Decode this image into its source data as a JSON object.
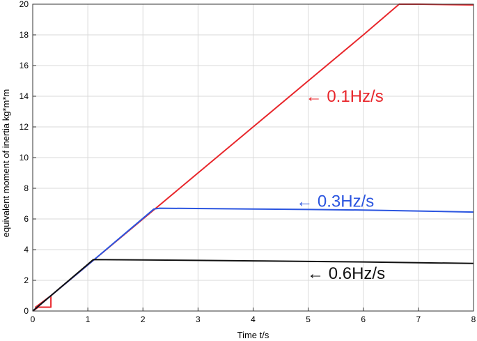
{
  "chart_data": {
    "type": "line",
    "title": "",
    "xlabel": "Time t/s",
    "ylabel": "equivalent moment of inertia  kg*m*m",
    "xlim": [
      0,
      8
    ],
    "ylim": [
      0,
      20
    ],
    "xticks": [
      0,
      1,
      2,
      3,
      4,
      5,
      6,
      7,
      8
    ],
    "yticks": [
      0,
      2,
      4,
      6,
      8,
      10,
      12,
      14,
      16,
      18,
      20
    ],
    "grid": true,
    "series": [
      {
        "color": "#e8262b",
        "x": [
          0,
          0.1,
          0.33,
          0.33,
          0.05,
          0.33,
          1.0,
          1.5,
          2.0,
          3.0,
          4.0,
          5.0,
          6.0,
          6.65,
          7.0,
          8.0
        ],
        "y": [
          0.0,
          0.25,
          0.25,
          1.0,
          0.25,
          1.0,
          3.0,
          4.5,
          6.0,
          9.0,
          12.0,
          15.0,
          18.0,
          20.0,
          20.0,
          19.95
        ]
      },
      {
        "color": "#2b55e0",
        "x": [
          0,
          0.33,
          1.1,
          2.2,
          2.3,
          4.0,
          5.0,
          6.0,
          7.0,
          8.0
        ],
        "y": [
          0.0,
          1.0,
          3.3,
          6.65,
          6.7,
          6.65,
          6.62,
          6.58,
          6.52,
          6.45
        ]
      },
      {
        "color": "#111111",
        "x": [
          0,
          0.33,
          1.1,
          2.0,
          3.0,
          4.0,
          5.0,
          6.0,
          7.0,
          8.0
        ],
        "y": [
          0.0,
          1.0,
          3.35,
          3.33,
          3.3,
          3.27,
          3.23,
          3.2,
          3.15,
          3.1
        ]
      }
    ],
    "annotations": [
      {
        "text": "0.1Hz/s",
        "x": 4.95,
        "y": 14.0,
        "color": "#e8262b"
      },
      {
        "text": "0.3Hz/s",
        "x": 4.78,
        "y": 7.15,
        "color": "#2b55e0"
      },
      {
        "text": "0.6Hz/s",
        "x": 4.98,
        "y": 2.45,
        "color": "#111111"
      }
    ],
    "arrow_glyph": "←"
  }
}
